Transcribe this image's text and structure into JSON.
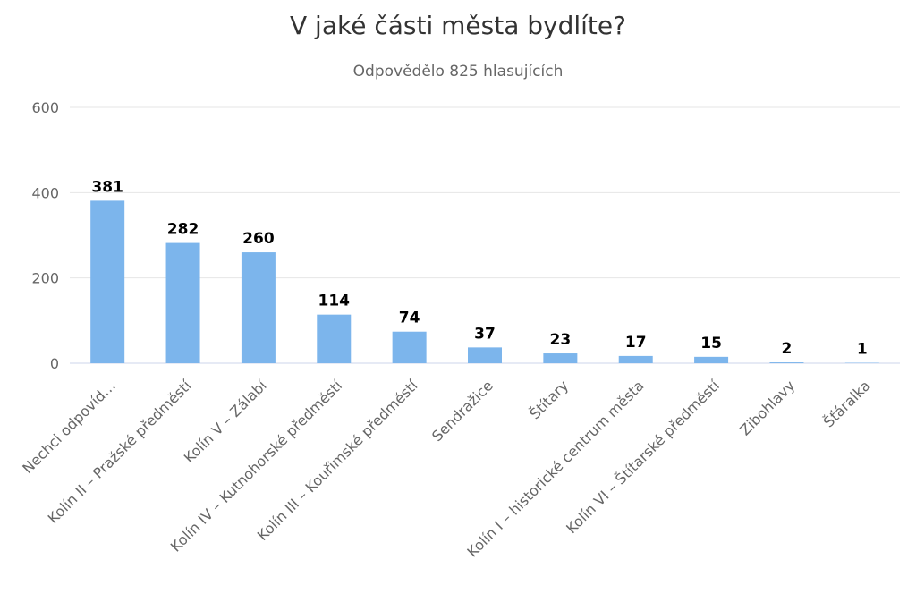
{
  "chart_data": {
    "type": "bar",
    "title": "V jaké části města bydlíte?",
    "subtitle": "Odpovědělo 825 hlasujících",
    "xlabel": "",
    "ylabel": "",
    "ylim": [
      0,
      600
    ],
    "yticks": [
      0,
      200,
      400,
      600
    ],
    "grid": true,
    "categories": [
      "Nechci odpovíd…",
      "Kolín II – Pražské předměstí",
      "Kolín V – Zálabí",
      "Kolín IV – Kutnohorské předměstí",
      "Kolín III – Kouřimské předměstí",
      "Sendražice",
      "Štítary",
      "Kolín I – historické centrum města",
      "Kolín VI – Štítarské předměstí",
      "Zibohlavy",
      "Šťáralka"
    ],
    "values": [
      381,
      282,
      260,
      114,
      74,
      37,
      23,
      17,
      15,
      2,
      1
    ],
    "bar_color": "#7cb5ec",
    "grid_color": "#e6e6e6",
    "axis_color": "#ccd6eb"
  }
}
